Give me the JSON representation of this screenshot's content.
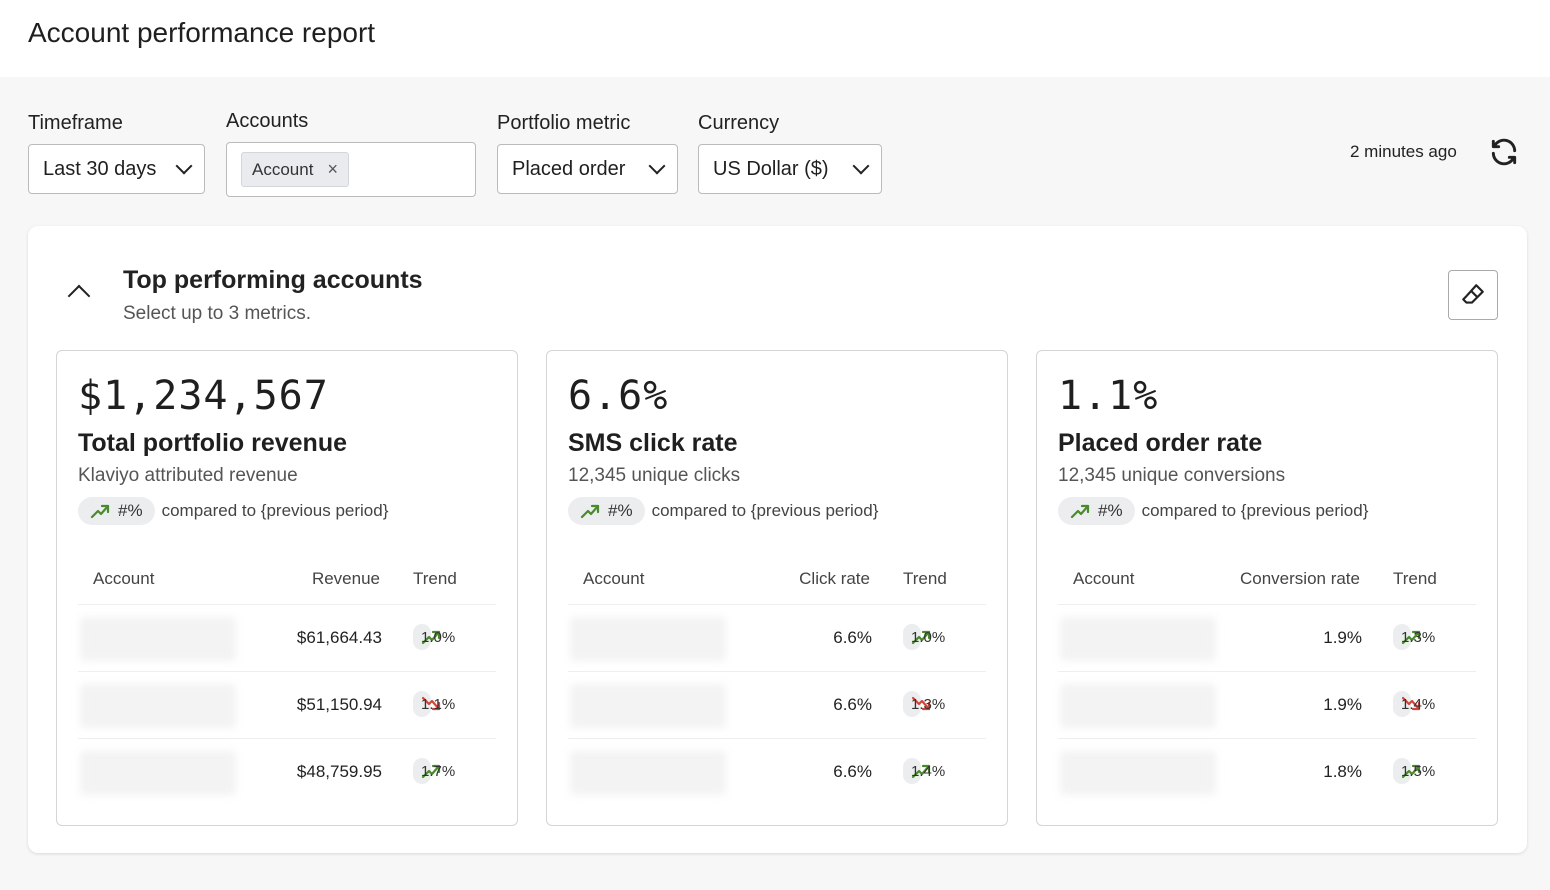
{
  "header": {
    "title": "Account performance report"
  },
  "filters": {
    "timeframe": {
      "label": "Timeframe",
      "value": "Last 30 days"
    },
    "accounts": {
      "label": "Accounts",
      "chip": "Account"
    },
    "portfolio_metric": {
      "label": "Portfolio metric",
      "value": "Placed order"
    },
    "currency": {
      "label": "Currency",
      "value": "US Dollar ($)"
    }
  },
  "last_updated": "2 minutes ago",
  "section": {
    "title": "Top performing accounts",
    "subtitle": "Select up to 3 metrics."
  },
  "colors": {
    "up": "#4a8a2c",
    "down": "#d0463b"
  },
  "cards": [
    {
      "value": "$1,234,567",
      "name": "Total portfolio revenue",
      "description": "Klaviyo attributed revenue",
      "change": "#%",
      "change_dir": "up",
      "compare": "compared to {previous period}",
      "columns": [
        "Account",
        "Revenue",
        "Trend"
      ],
      "rows": [
        {
          "value": "$61,664.43",
          "trend": "1.0%",
          "dir": "up"
        },
        {
          "value": "$51,150.94",
          "trend": "1.1%",
          "dir": "down"
        },
        {
          "value": "$48,759.95",
          "trend": "1.7%",
          "dir": "up"
        }
      ]
    },
    {
      "value": "6.6%",
      "name": "SMS click rate",
      "description": "12,345 unique clicks",
      "change": "#%",
      "change_dir": "up",
      "compare": "compared to {previous period}",
      "columns": [
        "Account",
        "Click rate",
        "Trend"
      ],
      "rows": [
        {
          "value": "6.6%",
          "trend": "1.0%",
          "dir": "up"
        },
        {
          "value": "6.6%",
          "trend": "1.3%",
          "dir": "down"
        },
        {
          "value": "6.6%",
          "trend": "1.4%",
          "dir": "up"
        }
      ]
    },
    {
      "value": "1.1%",
      "name": "Placed order rate",
      "description": "12,345 unique conversions",
      "change": "#%",
      "change_dir": "up",
      "compare": "compared to {previous period}",
      "columns": [
        "Account",
        "Conversion rate",
        "Trend"
      ],
      "rows": [
        {
          "value": "1.9%",
          "trend": "1.3%",
          "dir": "up"
        },
        {
          "value": "1.9%",
          "trend": "1.4%",
          "dir": "down"
        },
        {
          "value": "1.8%",
          "trend": "1.5%",
          "dir": "up"
        }
      ]
    }
  ]
}
